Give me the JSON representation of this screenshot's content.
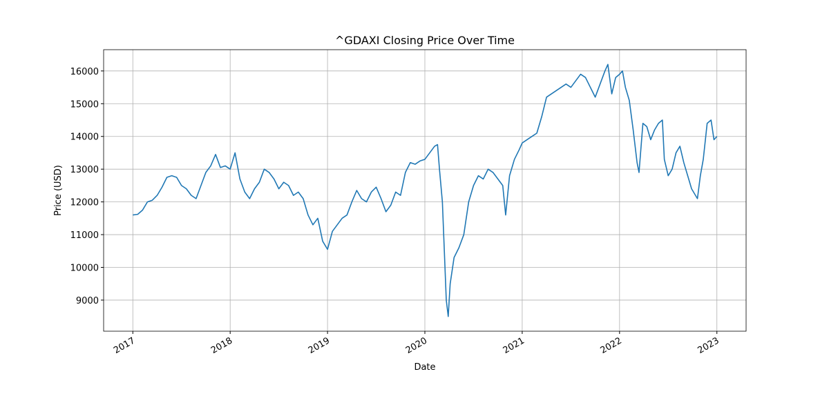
{
  "chart_data": {
    "type": "line",
    "title": "^GDAXI Closing Price Over Time",
    "xlabel": "Date",
    "ylabel": "Price (USD)",
    "x": [
      2017.0,
      2017.05,
      2017.1,
      2017.15,
      2017.2,
      2017.25,
      2017.3,
      2017.35,
      2017.4,
      2017.45,
      2017.5,
      2017.55,
      2017.6,
      2017.65,
      2017.7,
      2017.75,
      2017.8,
      2017.85,
      2017.9,
      2017.95,
      2018.0,
      2018.05,
      2018.1,
      2018.15,
      2018.2,
      2018.25,
      2018.3,
      2018.35,
      2018.4,
      2018.45,
      2018.5,
      2018.55,
      2018.6,
      2018.65,
      2018.7,
      2018.75,
      2018.8,
      2018.85,
      2018.9,
      2018.95,
      2019.0,
      2019.05,
      2019.1,
      2019.15,
      2019.2,
      2019.25,
      2019.3,
      2019.35,
      2019.4,
      2019.45,
      2019.5,
      2019.55,
      2019.6,
      2019.65,
      2019.7,
      2019.75,
      2019.8,
      2019.85,
      2019.9,
      2019.95,
      2020.0,
      2020.05,
      2020.1,
      2020.13,
      2020.15,
      2020.18,
      2020.2,
      2020.22,
      2020.24,
      2020.26,
      2020.3,
      2020.35,
      2020.4,
      2020.45,
      2020.5,
      2020.55,
      2020.6,
      2020.65,
      2020.7,
      2020.75,
      2020.8,
      2020.83,
      2020.87,
      2020.92,
      2020.97,
      2021.0,
      2021.05,
      2021.1,
      2021.15,
      2021.2,
      2021.25,
      2021.3,
      2021.35,
      2021.4,
      2021.45,
      2021.5,
      2021.55,
      2021.6,
      2021.65,
      2021.7,
      2021.75,
      2021.8,
      2021.85,
      2021.88,
      2021.92,
      2021.96,
      2022.0,
      2022.03,
      2022.06,
      2022.1,
      2022.14,
      2022.18,
      2022.2,
      2022.24,
      2022.28,
      2022.32,
      2022.36,
      2022.4,
      2022.44,
      2022.46,
      2022.5,
      2022.54,
      2022.58,
      2022.62,
      2022.66,
      2022.7,
      2022.74,
      2022.78,
      2022.8,
      2022.83,
      2022.86,
      2022.9,
      2022.94,
      2022.97,
      2023.0
    ],
    "series": [
      {
        "name": "^GDAXI",
        "color": "#1f77b4",
        "values": [
          11600,
          11620,
          11750,
          12000,
          12050,
          12200,
          12450,
          12750,
          12800,
          12750,
          12500,
          12400,
          12200,
          12100,
          12500,
          12900,
          13100,
          13450,
          13050,
          13100,
          13000,
          13500,
          12700,
          12300,
          12100,
          12400,
          12600,
          13000,
          12900,
          12700,
          12400,
          12600,
          12500,
          12200,
          12300,
          12100,
          11600,
          11300,
          11500,
          10800,
          10550,
          11100,
          11300,
          11500,
          11600,
          12000,
          12350,
          12100,
          12000,
          12300,
          12450,
          12100,
          11700,
          11900,
          12300,
          12200,
          12900,
          13200,
          13150,
          13250,
          13300,
          13500,
          13700,
          13750,
          13000,
          12000,
          10500,
          9000,
          8500,
          9500,
          10300,
          10600,
          11000,
          12000,
          12500,
          12800,
          12700,
          13000,
          12900,
          12700,
          12500,
          11600,
          12800,
          13300,
          13600,
          13800,
          13900,
          14000,
          14100,
          14600,
          15200,
          15300,
          15400,
          15500,
          15600,
          15500,
          15700,
          15900,
          15800,
          15500,
          15200,
          15600,
          16000,
          16200,
          15300,
          15800,
          15900,
          16000,
          15500,
          15100,
          14200,
          13200,
          12900,
          14400,
          14300,
          13900,
          14200,
          14400,
          14500,
          13300,
          12800,
          13000,
          13500,
          13700,
          13200,
          12800,
          12400,
          12200,
          12100,
          12800,
          13300,
          14400,
          14500,
          13900,
          14000
        ]
      }
    ],
    "xlim": [
      2016.7,
      2023.3
    ],
    "xticks": [
      2017,
      2018,
      2019,
      2020,
      2021,
      2022,
      2023
    ],
    "ylim": [
      8050,
      16650
    ],
    "yticks": [
      9000,
      10000,
      11000,
      12000,
      13000,
      14000,
      15000,
      16000
    ],
    "grid": true
  }
}
